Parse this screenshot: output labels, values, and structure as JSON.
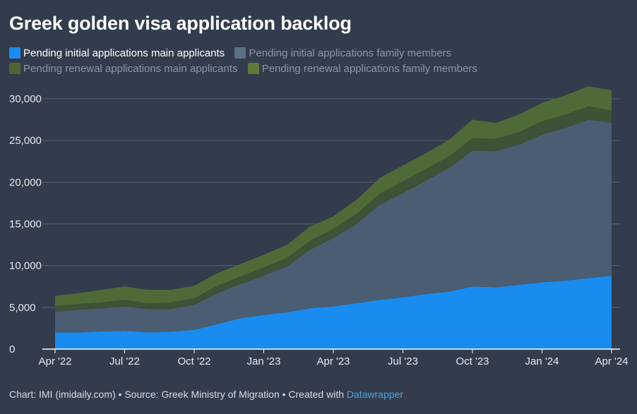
{
  "title": "Greek golden visa application backlog",
  "legend": [
    {
      "label": "Pending initial applications main applicants",
      "color": "#1a8cf0"
    },
    {
      "label": "Pending initial applications family members",
      "color": "#5a7085"
    },
    {
      "label": "Pending renewal applications main applicants",
      "color": "#4e6634"
    },
    {
      "label": "Pending renewal applications family members",
      "color": "#5f7b3c"
    }
  ],
  "footer": {
    "text": "Chart: IMI (imidaily.com) • Source: Greek Ministry of Migration • Created with ",
    "link": "Datawrapper"
  },
  "chart_data": {
    "type": "area",
    "stacked": true,
    "ylim": [
      0,
      30000
    ],
    "yticks": [
      0,
      5000,
      10000,
      15000,
      20000,
      25000,
      30000
    ],
    "ytick_labels": [
      "0",
      "5,000",
      "10,000",
      "15,000",
      "20,000",
      "25,000",
      "30,000"
    ],
    "xtick_labels": [
      "Apr '22",
      "Jul '22",
      "Oct '22",
      "Jan '23",
      "Apr '23",
      "Jul '23",
      "Oct '23",
      "Jan '24",
      "Apr '24"
    ],
    "xtick_positions": [
      0,
      3,
      6,
      9,
      12,
      15,
      18,
      21,
      24
    ],
    "x": [
      "Apr 2022",
      "May 2022",
      "Jun 2022",
      "Jul 2022",
      "Aug 2022",
      "Sep 2022",
      "Oct 2022",
      "Nov 2022",
      "Dec 2022",
      "Jan 2023",
      "Feb 2023",
      "Mar 2023",
      "Apr 2023",
      "May 2023",
      "Jun 2023",
      "Jul 2023",
      "Aug 2023",
      "Sep 2023",
      "Oct 2023",
      "Nov 2023",
      "Dec 2023",
      "Jan 2024",
      "Feb 2024",
      "Mar 2024",
      "Apr 2024"
    ],
    "grid": true,
    "legend_position": "top",
    "series": [
      {
        "name": "Pending initial applications main applicants",
        "color": "#1a8cf0",
        "values": [
          2000,
          2000,
          2100,
          2200,
          2000,
          2100,
          2300,
          3000,
          3700,
          4100,
          4400,
          4900,
          5100,
          5500,
          5900,
          6200,
          6600,
          6900,
          7500,
          7400,
          7700,
          8000,
          8200,
          8500,
          8800
        ]
      },
      {
        "name": "Pending initial applications family members",
        "color": "#4a5d72",
        "values": [
          2500,
          2700,
          2800,
          2900,
          2800,
          2700,
          3000,
          3700,
          4100,
          4700,
          5500,
          7000,
          8200,
          9500,
          11400,
          12500,
          13600,
          14800,
          16300,
          16300,
          16800,
          17700,
          18300,
          19000,
          18300
        ]
      },
      {
        "name": "Pending renewal applications main applicants",
        "color": "#3d5236",
        "values": [
          700,
          700,
          700,
          800,
          700,
          800,
          800,
          900,
          900,
          1000,
          1000,
          1100,
          1100,
          1200,
          1300,
          1400,
          1400,
          1400,
          1500,
          1500,
          1500,
          1600,
          1600,
          1600,
          1500
        ]
      },
      {
        "name": "Pending renewal applications family members",
        "color": "#4f6a36",
        "values": [
          1200,
          1300,
          1500,
          1600,
          1600,
          1500,
          1500,
          1500,
          1500,
          1500,
          1600,
          1700,
          1500,
          1700,
          1900,
          1900,
          1900,
          2000,
          2200,
          1900,
          2100,
          2200,
          2300,
          2400,
          2400
        ]
      }
    ]
  }
}
